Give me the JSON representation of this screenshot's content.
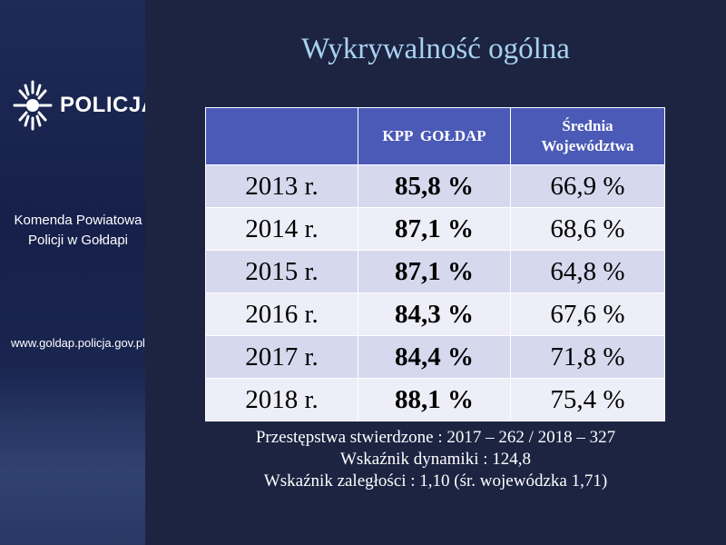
{
  "sidebar": {
    "logo_text": "POLICJA",
    "unit_name_line1": "Komenda Powiatowa",
    "unit_name_line2": "Policji w Gołdapi",
    "website": "www.goldap.policja.gov.pl"
  },
  "slide": {
    "title": "Wykrywalność ogólna"
  },
  "table": {
    "headers": [
      "",
      "KPP  GOŁDAP",
      "Średnia Województwa"
    ],
    "header_line1_col3": "Średnia",
    "header_line2_col3": "Województwa",
    "rows": [
      {
        "year": "2013 r.",
        "kpp": "85,8 %",
        "avg": "66,9 %"
      },
      {
        "year": "2014 r.",
        "kpp": "87,1 %",
        "avg": "68,6 %"
      },
      {
        "year": "2015 r.",
        "kpp": "87,1 %",
        "avg": "64,8 %"
      },
      {
        "year": "2016 r.",
        "kpp": "84,3 %",
        "avg": "67,6 %"
      },
      {
        "year": "2017 r.",
        "kpp": "84,4 %",
        "avg": "71,8 %"
      },
      {
        "year": "2018 r.",
        "kpp": "88,1 %",
        "avg": "75,4 %"
      }
    ]
  },
  "notes": {
    "line1": "Przestępstwa stwierdzone : 2017 – 262 / 2018 – 327",
    "line2": "Wskaźnik dynamiki : 124,8",
    "line3": "Wskaźnik zaległości : 1,10 (śr. wojewódzka 1,71)"
  },
  "colors": {
    "background": "#1c2442",
    "title": "#a9d2f0",
    "table_header": "#4b5ab6",
    "row_odd": "#d6d8ee",
    "row_even": "#edeef7"
  },
  "icons": {
    "logo": "police-star-icon"
  }
}
